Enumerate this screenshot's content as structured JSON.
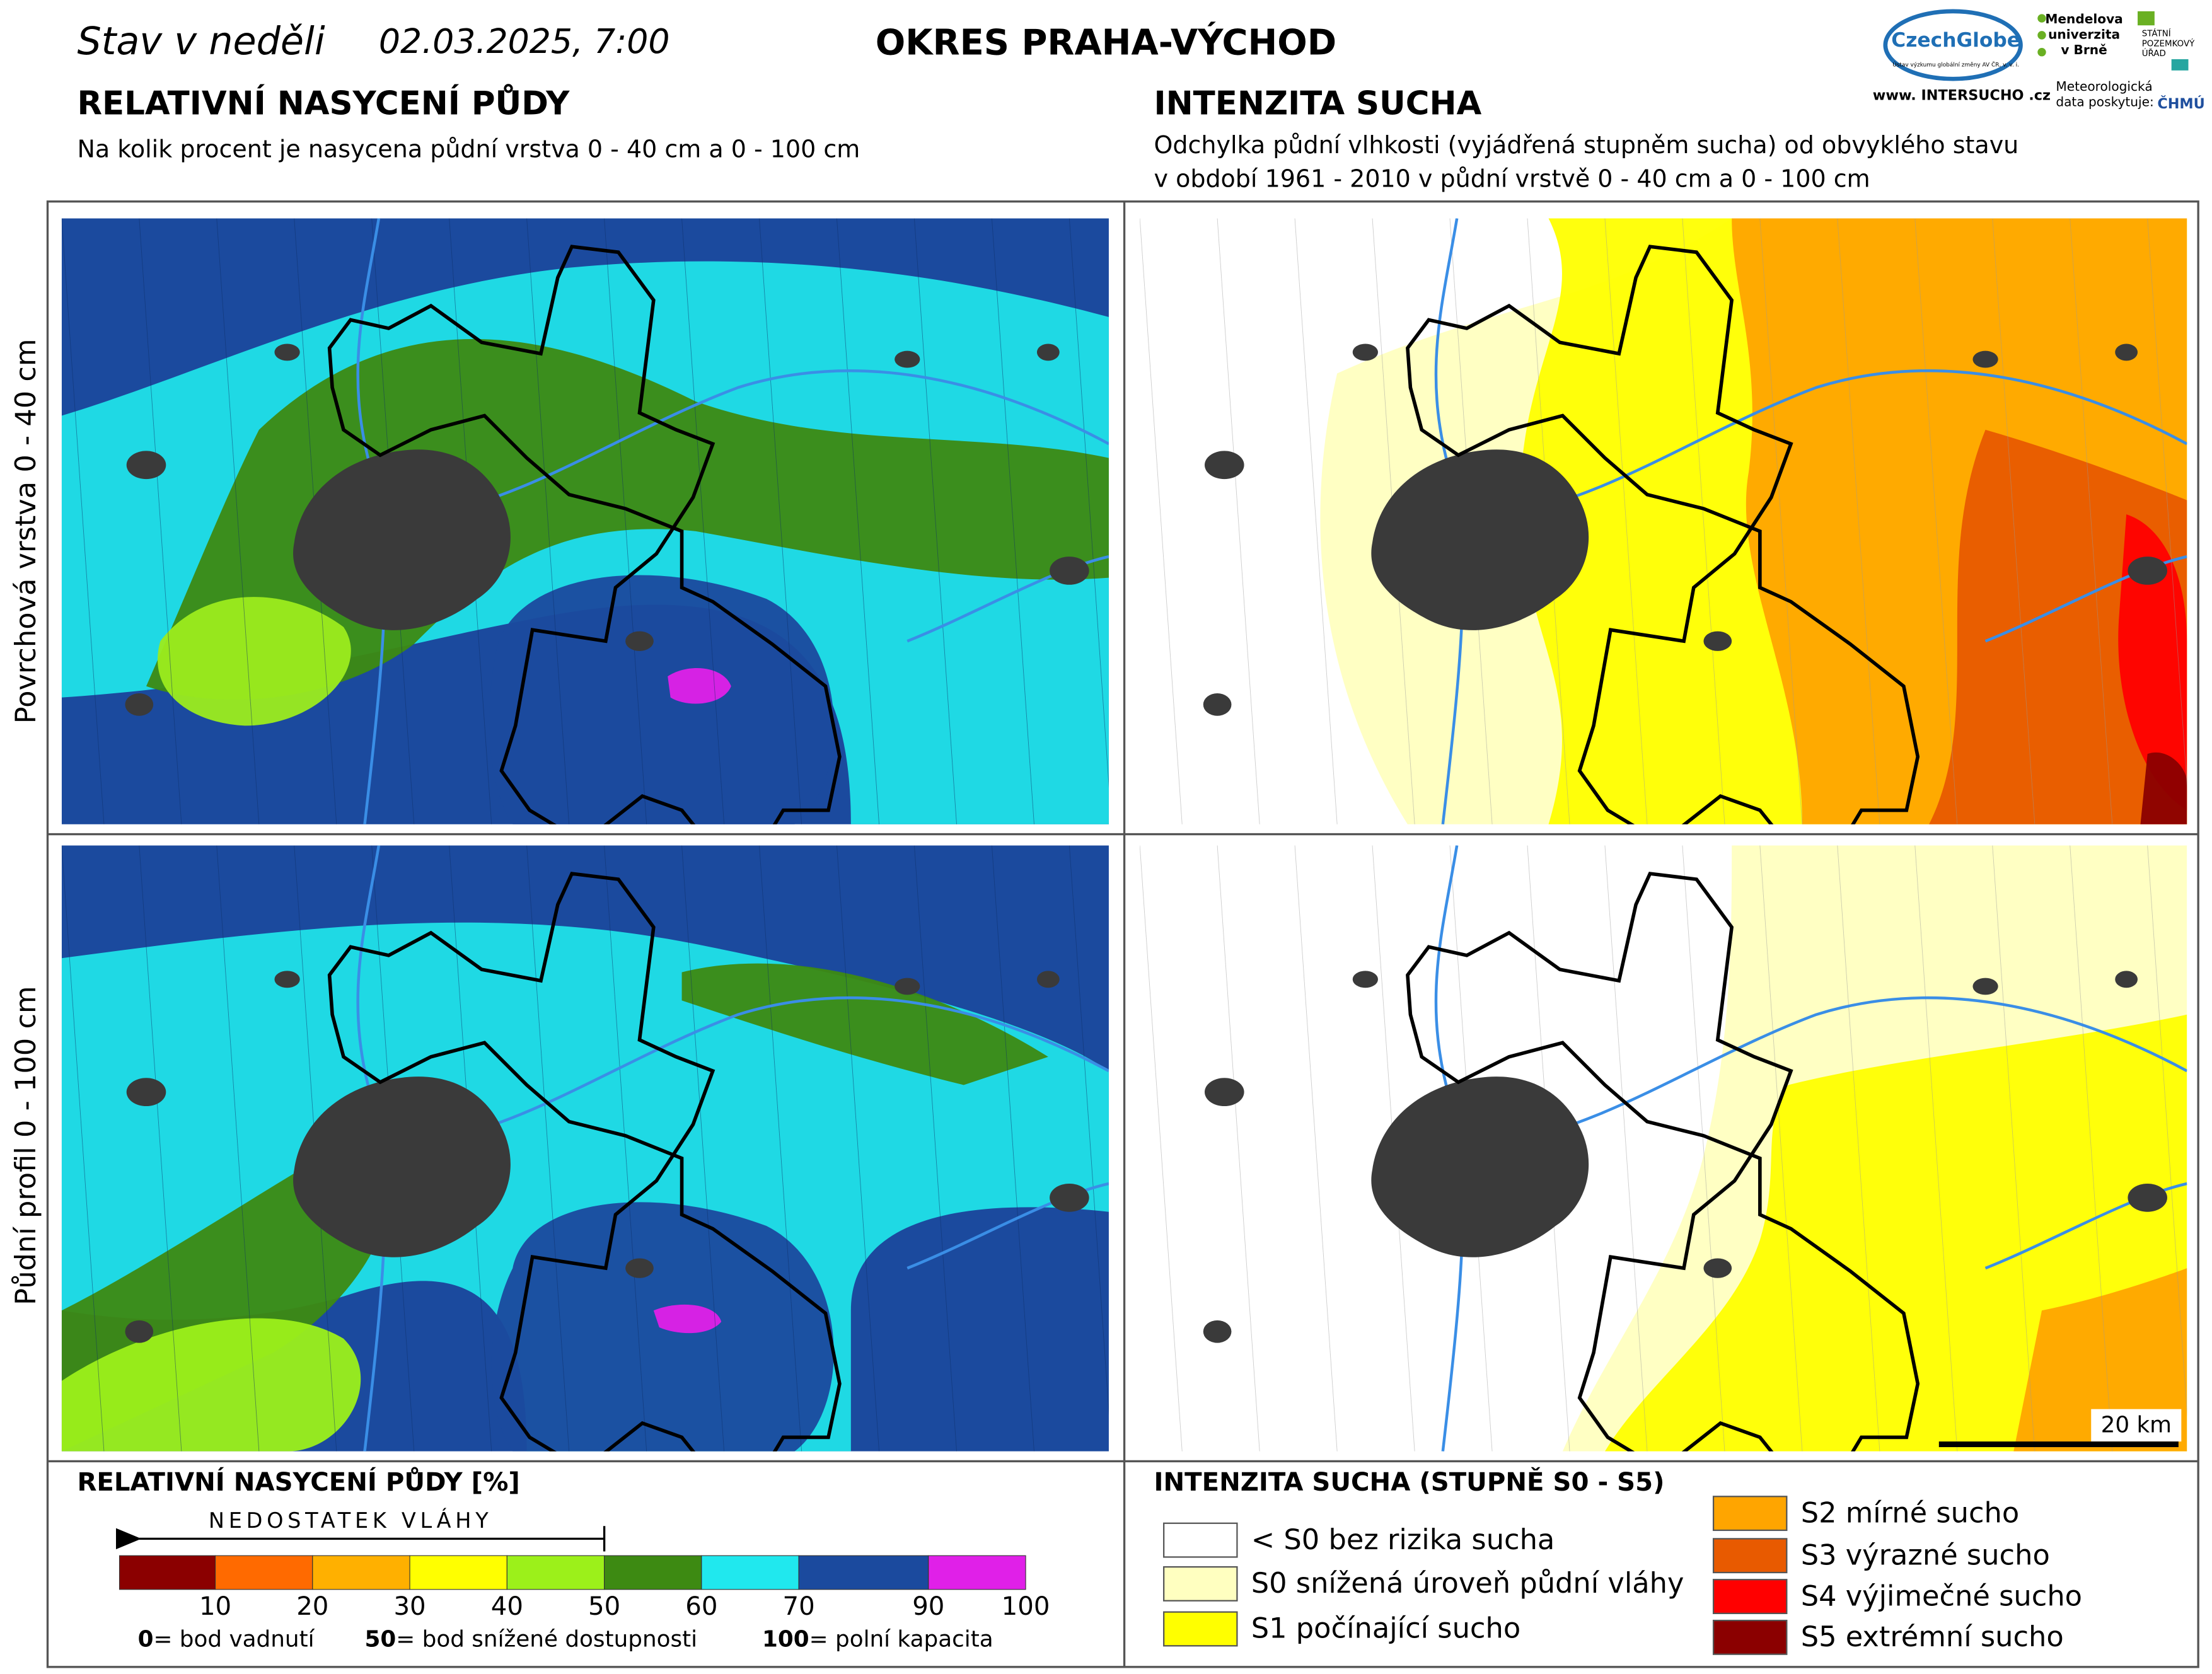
{
  "header": {
    "date_label": "Stav v neděli",
    "date": "02.03.2025, 7:00",
    "district": "OKRES  PRAHA-VÝCHOD"
  },
  "logos": {
    "czechglobe": "CzechGlobe",
    "czechglobe_sub": "Ústav výzkumu globální změny AV ČR, v. v. i.",
    "mendelu": [
      "Mendelova",
      "univerzita",
      "v Brně"
    ],
    "spu": [
      "STÁTNÍ",
      "POZEMKOVÝ",
      "ÚŘAD"
    ],
    "intersucho": "www. INTERSUCHO .cz",
    "meteo": [
      "Meteorologická",
      "data poskytuje:"
    ],
    "chmu": "ČHMÚ"
  },
  "left": {
    "title": "RELATIVNÍ NASYCENÍ PŮDY",
    "subtitle": "Na kolik procent je nasycena půdní vrstva 0 - 40 cm a 0 - 100 cm"
  },
  "right": {
    "title": "INTENZITA SUCHA",
    "subtitle": [
      "Odchylka půdní vlhkosti (vyjádřená stupněm sucha) od obvyklého stavu",
      "v období 1961 - 2010 v půdní vrstvě 0 - 40 cm a 0 - 100 cm"
    ]
  },
  "row_labels": [
    "Povrchová vrstva 0 - 40 cm",
    "Půdní profil 0 - 100 cm"
  ],
  "scale_bar": "20 km",
  "legend_left": {
    "title": "RELATIVNÍ NASYCENÍ PŮDY [%]",
    "arrow_label": "NEDOSTATEK VLÁHY",
    "colors": [
      "#8b0000",
      "#ff6a00",
      "#ffb000",
      "#ffff00",
      "#9cf01a",
      "#3d8a12",
      "#20e8ee",
      "#1b4a9e",
      "#e020e8"
    ],
    "ticks": [
      "10",
      "20",
      "30",
      "40",
      "50",
      "60",
      "70",
      "90",
      "100"
    ],
    "notes": [
      {
        "value": "0",
        "text": "= bod vadnutí"
      },
      {
        "value": "50",
        "text": "= bod snížené dostupnosti"
      },
      {
        "value": "100",
        "text": "= polní kapacita"
      }
    ]
  },
  "legend_right": {
    "title": "INTENZITA SUCHA (STUPNĚ S0 - S5)",
    "items": [
      {
        "label": "< S0 bez rizika sucha",
        "color": "#ffffff"
      },
      {
        "label": "S0 snížená úroveň půdní vláhy",
        "color": "#ffffc0"
      },
      {
        "label": "S1 počínající sucho",
        "color": "#ffff00"
      },
      {
        "label": "S2 mírné sucho",
        "color": "#ffa500"
      },
      {
        "label": "S3 výrazné sucho",
        "color": "#e85a00"
      },
      {
        "label": "S4 výjimečné sucho",
        "color": "#ff0000"
      },
      {
        "label": "S5 extrémní sucho",
        "color": "#8b0000"
      }
    ]
  }
}
